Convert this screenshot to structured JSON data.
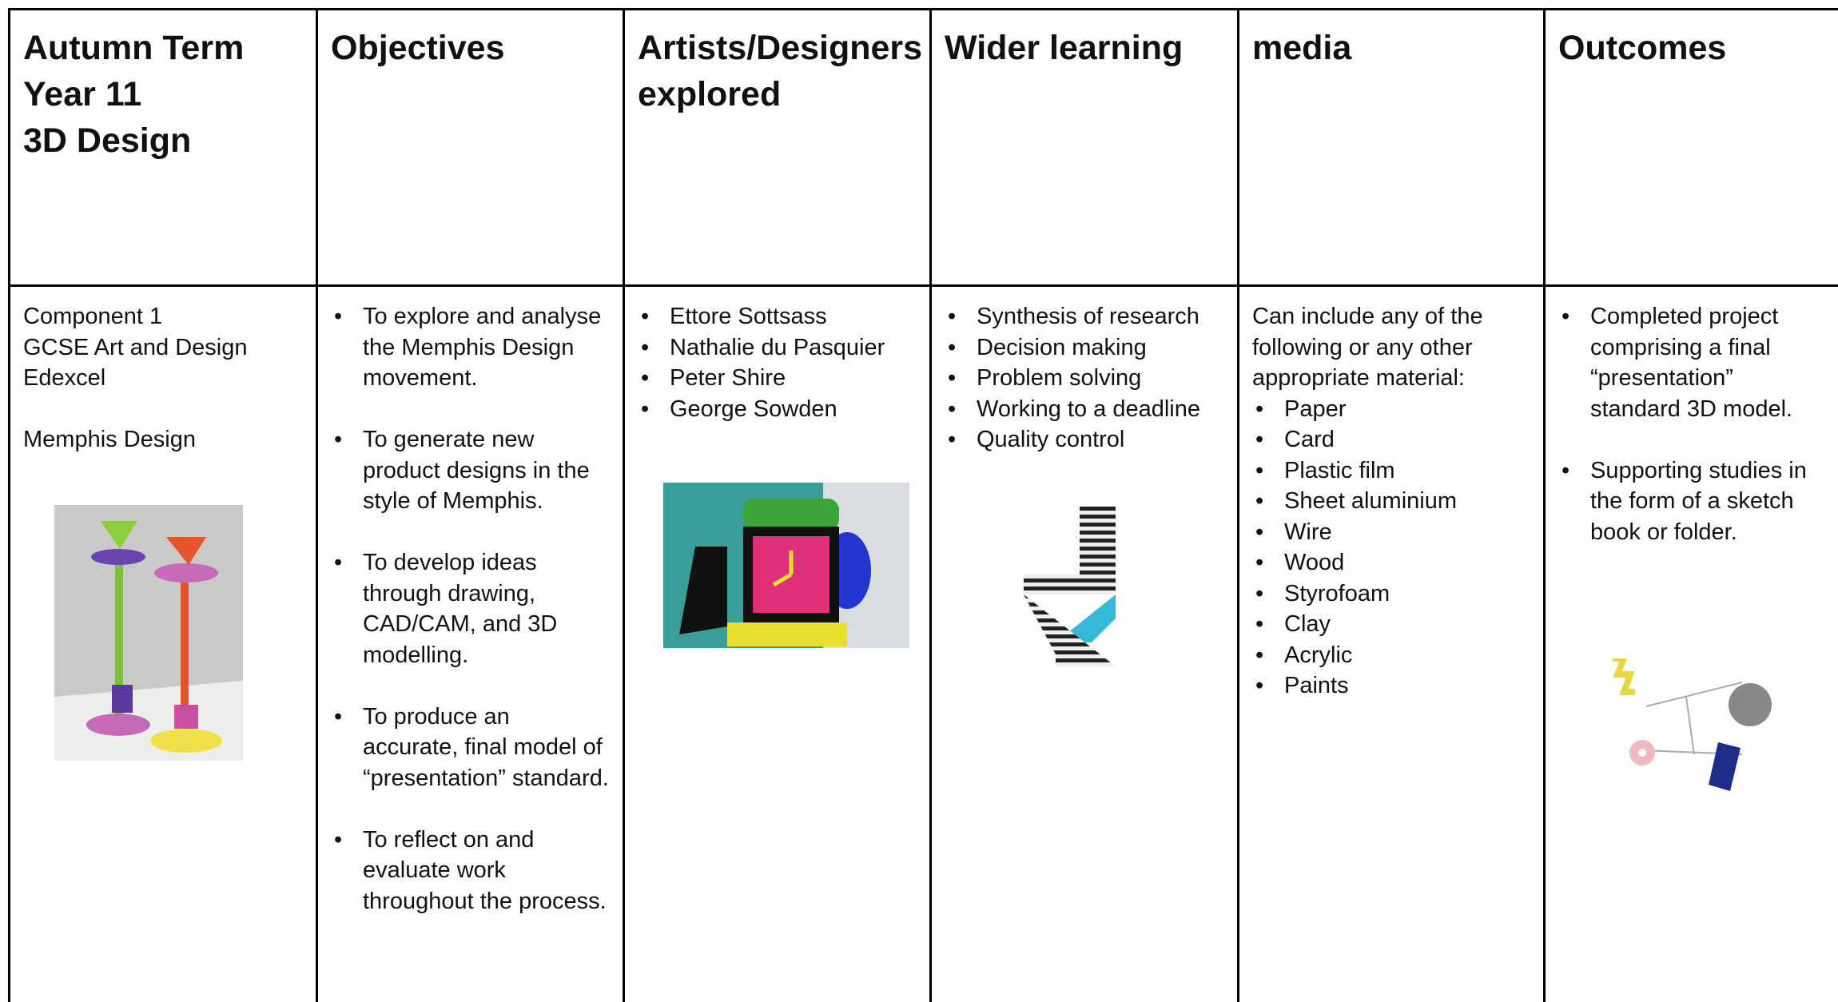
{
  "table": {
    "header": [
      [
        "Autumn Term",
        "Year 11",
        "3D Design"
      ],
      [
        "Objectives"
      ],
      [
        "Artists/Designers explored"
      ],
      [
        "Wider learning"
      ],
      [
        "media"
      ],
      [
        "Outcomes"
      ]
    ],
    "intro": {
      "lines": [
        "Component 1",
        "GCSE Art and Design",
        "Edexcel"
      ],
      "topic": "Memphis Design"
    },
    "objectives": [
      "To explore and analyse the Memphis Design movement.",
      "To generate new product designs in the style of Memphis.",
      "To develop ideas through drawing, CAD/CAM, and 3D modelling.",
      "To produce an accurate, final model of “presentation” standard.",
      "To reflect on and evaluate work throughout the process."
    ],
    "artists": [
      "Ettore Sottsass",
      "Nathalie du Pasquier",
      "Peter Shire",
      "George Sowden"
    ],
    "wider_learning": [
      "Synthesis of research",
      "Decision making",
      "Problem solving",
      "Working to a deadline",
      "Quality control"
    ],
    "media": {
      "intro": "Can include any of the following or any other appropriate material:",
      "items": [
        "Paper",
        "Card",
        "Plastic film",
        "Sheet aluminium",
        "Wire",
        "Wood",
        "Styrofoam",
        "Clay",
        "Acrylic",
        "Paints"
      ]
    },
    "outcomes": [
      "Completed project comprising a final “presentation” standard 3D model.",
      "Supporting studies in the form of a sketch book or folder."
    ]
  }
}
